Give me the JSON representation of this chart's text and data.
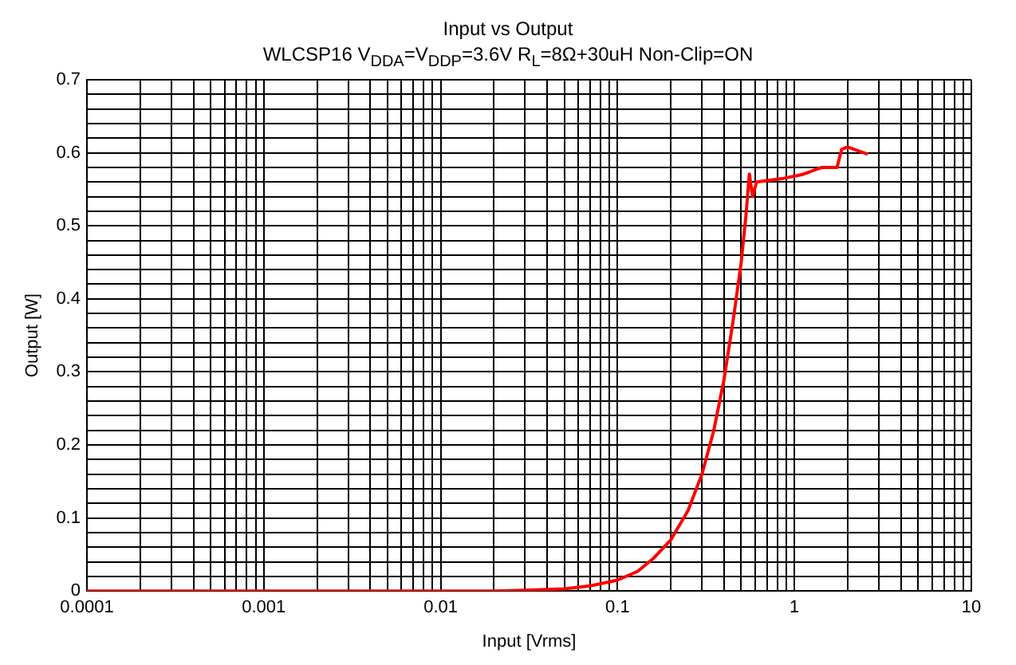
{
  "chart_data": {
    "type": "line",
    "title": "Input vs Output",
    "subtitle": "WLCSP16 V$_{DDA}$=V$_{DDP}$=3.6V R$_{L}$=8Ω+30uH Non-Clip=ON",
    "xlabel": "Input [Vrms]",
    "ylabel": "Output [W]",
    "log": "x",
    "grid": true,
    "legend": false,
    "marker": "none",
    "line_style": "solid",
    "x": [
      0.0001,
      0.001,
      0.01,
      0.02,
      0.03,
      0.05,
      0.07,
      0.1,
      0.13,
      0.16,
      0.2,
      0.25,
      0.3,
      0.35,
      0.4,
      0.45,
      0.5,
      0.53,
      0.556,
      0.58,
      0.61,
      0.7,
      0.87,
      1.1,
      1.43,
      1.74,
      1.85,
      2.0,
      2.34,
      2.6
    ],
    "series": [
      {
        "color": "#ff0000",
        "values": [
          0,
          0,
          0,
          0,
          0.001,
          0.003,
          0.007,
          0.015,
          0.027,
          0.045,
          0.07,
          0.11,
          0.16,
          0.22,
          0.29,
          0.37,
          0.45,
          0.51,
          0.571,
          0.54,
          0.56,
          0.562,
          0.565,
          0.57,
          0.58,
          0.58,
          0.605,
          0.608,
          0.602,
          0.598
        ]
      }
    ],
    "xlim": [
      0.0001,
      10
    ],
    "xticks": [
      0.0001,
      {
        "value": 0.0002,
        "label": null
      },
      {
        "value": 0.0003,
        "label": null
      },
      {
        "value": 0.0004,
        "label": null
      },
      {
        "value": 0.0005,
        "label": null
      },
      {
        "value": 0.0006,
        "label": null
      },
      {
        "value": 0.0007,
        "label": null
      },
      {
        "value": 0.0008,
        "label": null
      },
      {
        "value": 0.0009,
        "label": null
      },
      0.001,
      {
        "value": 0.002,
        "label": null
      },
      {
        "value": 0.003,
        "label": null
      },
      {
        "value": 0.004,
        "label": null
      },
      {
        "value": 0.005,
        "label": null
      },
      {
        "value": 0.006,
        "label": null
      },
      {
        "value": 0.007,
        "label": null
      },
      {
        "value": 0.008,
        "label": null
      },
      {
        "value": 0.009,
        "label": null
      },
      0.01,
      {
        "value": 0.02,
        "label": null
      },
      {
        "value": 0.03,
        "label": null
      },
      {
        "value": 0.04,
        "label": null
      },
      {
        "value": 0.05,
        "label": null
      },
      {
        "value": 0.06,
        "label": null
      },
      {
        "value": 0.07,
        "label": null
      },
      {
        "value": 0.08,
        "label": null
      },
      {
        "value": 0.09,
        "label": null
      },
      0.1,
      {
        "value": 0.2,
        "label": null
      },
      {
        "value": 0.3,
        "label": null
      },
      {
        "value": 0.4,
        "label": null
      },
      {
        "value": 0.5,
        "label": null
      },
      {
        "value": 0.6,
        "label": null
      },
      {
        "value": 0.7,
        "label": null
      },
      {
        "value": 0.8,
        "label": null
      },
      {
        "value": 0.9,
        "label": null
      },
      1,
      {
        "value": 2,
        "label": null
      },
      {
        "value": 3,
        "label": null
      },
      {
        "value": 4,
        "label": null
      },
      {
        "value": 5,
        "label": null
      },
      {
        "value": 6,
        "label": null
      },
      {
        "value": 7,
        "label": null
      },
      {
        "value": 8,
        "label": null
      },
      {
        "value": 9,
        "label": null
      },
      10
    ],
    "ylim": [
      0,
      0.7
    ],
    "yticks": [
      0,
      {
        "value": 0.02,
        "label": null
      },
      {
        "value": 0.04,
        "label": null
      },
      {
        "value": 0.06,
        "label": null
      },
      {
        "value": 0.08,
        "label": null
      },
      0.1,
      {
        "value": 0.12,
        "label": null
      },
      {
        "value": 0.14,
        "label": null
      },
      {
        "value": 0.16,
        "label": null
      },
      {
        "value": 0.18,
        "label": null
      },
      0.2,
      {
        "value": 0.22,
        "label": null
      },
      {
        "value": 0.24,
        "label": null
      },
      {
        "value": 0.26,
        "label": null
      },
      {
        "value": 0.28,
        "label": null
      },
      0.3,
      {
        "value": 0.32,
        "label": null
      },
      {
        "value": 0.34,
        "label": null
      },
      {
        "value": 0.36,
        "label": null
      },
      {
        "value": 0.38,
        "label": null
      },
      0.4,
      {
        "value": 0.42,
        "label": null
      },
      {
        "value": 0.44,
        "label": null
      },
      {
        "value": 0.46,
        "label": null
      },
      {
        "value": 0.48,
        "label": null
      },
      0.5,
      {
        "value": 0.52,
        "label": null
      },
      {
        "value": 0.54,
        "label": null
      },
      {
        "value": 0.56,
        "label": null
      },
      {
        "value": 0.58,
        "label": null
      },
      0.6,
      {
        "value": 0.62,
        "label": null
      },
      {
        "value": 0.64,
        "label": null
      },
      {
        "value": 0.66,
        "label": null
      },
      {
        "value": 0.68,
        "label": null
      },
      0.7
    ]
  }
}
